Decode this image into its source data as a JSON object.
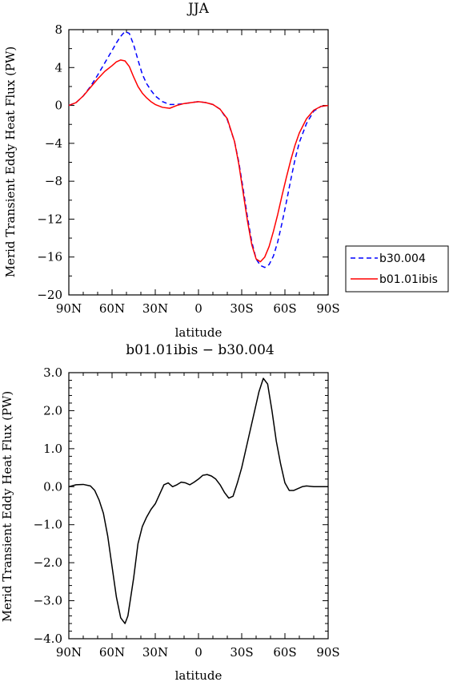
{
  "chart_data": [
    {
      "type": "line",
      "title": "JJA",
      "xlabel": "latitude",
      "ylabel": "Merid Transient Eddy Heat Flux (PW)",
      "xlim": [
        -90,
        90
      ],
      "ylim": [
        -20,
        8
      ],
      "x_ticks": [
        -90,
        -60,
        -30,
        0,
        30,
        60,
        90
      ],
      "x_tick_labels": [
        "90N",
        "60N",
        "30N",
        "0",
        "30S",
        "60S",
        "90S"
      ],
      "y_ticks": [
        -20,
        -16,
        -12,
        -8,
        -4,
        0,
        4,
        8
      ],
      "y_tick_labels": [
        "−20",
        "−16",
        "−12",
        "−8",
        "−4",
        "0",
        "4",
        "8"
      ],
      "grid": false,
      "legend_placement": "outside-right",
      "series": [
        {
          "name": "b30.004",
          "color": "#0000ff",
          "dash": "dashed",
          "x": [
            -90,
            -85,
            -80,
            -75,
            -70,
            -65,
            -60,
            -57,
            -54,
            -51,
            -48,
            -45,
            -42,
            -39,
            -36,
            -33,
            -30,
            -25,
            -20,
            -15,
            -10,
            -5,
            0,
            5,
            10,
            15,
            20,
            25,
            28,
            31,
            34,
            37,
            40,
            43,
            46,
            49,
            52,
            55,
            58,
            61,
            64,
            67,
            70,
            75,
            80,
            85,
            90
          ],
          "y": [
            0,
            0.3,
            1.0,
            2.0,
            3.2,
            4.5,
            5.8,
            6.6,
            7.3,
            7.8,
            7.6,
            6.4,
            4.8,
            3.3,
            2.3,
            1.6,
            1.0,
            0.4,
            0.1,
            0.1,
            0.2,
            0.3,
            0.4,
            0.3,
            0.1,
            -0.4,
            -1.5,
            -3.8,
            -6.0,
            -8.8,
            -11.8,
            -14.4,
            -16.2,
            -16.9,
            -17.1,
            -16.8,
            -15.9,
            -14.4,
            -12.4,
            -10.2,
            -7.9,
            -5.7,
            -3.9,
            -1.9,
            -0.6,
            -0.1,
            0
          ]
        },
        {
          "name": "b01.01ibis",
          "color": "#ff0000",
          "dash": "solid",
          "x": [
            -90,
            -85,
            -80,
            -75,
            -70,
            -65,
            -60,
            -57,
            -54,
            -51,
            -48,
            -45,
            -42,
            -39,
            -36,
            -33,
            -30,
            -25,
            -20,
            -15,
            -10,
            -5,
            0,
            5,
            10,
            15,
            20,
            25,
            28,
            31,
            34,
            37,
            40,
            43,
            46,
            49,
            52,
            55,
            58,
            61,
            64,
            67,
            70,
            75,
            80,
            85,
            90
          ],
          "y": [
            0,
            0.3,
            1.0,
            1.9,
            2.8,
            3.6,
            4.2,
            4.6,
            4.8,
            4.7,
            4.1,
            3.0,
            2.0,
            1.3,
            0.8,
            0.4,
            0.1,
            -0.2,
            -0.3,
            0.0,
            0.2,
            0.3,
            0.4,
            0.3,
            0.1,
            -0.4,
            -1.4,
            -3.8,
            -6.2,
            -9.2,
            -12.2,
            -14.7,
            -16.2,
            -16.5,
            -16.0,
            -14.9,
            -13.3,
            -11.5,
            -9.5,
            -7.6,
            -5.8,
            -4.2,
            -2.9,
            -1.4,
            -0.5,
            -0.1,
            0
          ]
        }
      ]
    },
    {
      "type": "line",
      "title": "b01.01ibis − b30.004",
      "xlabel": "latitude",
      "ylabel": "Merid Transient Eddy Heat Flux (PW)",
      "xlim": [
        -90,
        90
      ],
      "ylim": [
        -4,
        3
      ],
      "x_ticks": [
        -90,
        -60,
        -30,
        0,
        30,
        60,
        90
      ],
      "x_tick_labels": [
        "90N",
        "60N",
        "30N",
        "0",
        "30S",
        "60S",
        "90S"
      ],
      "y_ticks": [
        -4,
        -3,
        -2,
        -1,
        0,
        1,
        2,
        3
      ],
      "y_tick_labels": [
        "−4.0",
        "−3.0",
        "−2.0",
        "−1.0",
        "0.0",
        "1.0",
        "2.0",
        "3.0"
      ],
      "grid": false,
      "series": [
        {
          "color": "#000000",
          "dash": "solid",
          "x": [
            -90,
            -85,
            -80,
            -75,
            -72,
            -69,
            -66,
            -63,
            -60,
            -57,
            -54,
            -51,
            -49,
            -47,
            -45,
            -42,
            -39,
            -36,
            -33,
            -30,
            -27,
            -24,
            -21,
            -18,
            -15,
            -12,
            -9,
            -6,
            -3,
            0,
            3,
            6,
            9,
            12,
            15,
            18,
            21,
            24,
            27,
            30,
            33,
            36,
            39,
            42,
            45,
            48,
            51,
            54,
            57,
            60,
            63,
            66,
            69,
            72,
            75,
            80,
            85,
            90
          ],
          "y": [
            0,
            0.05,
            0.06,
            0.02,
            -0.1,
            -0.35,
            -0.7,
            -1.3,
            -2.1,
            -2.9,
            -3.45,
            -3.6,
            -3.4,
            -2.9,
            -2.4,
            -1.5,
            -1.05,
            -0.8,
            -0.6,
            -0.45,
            -0.2,
            0.05,
            0.1,
            0.0,
            0.05,
            0.12,
            0.1,
            0.05,
            0.12,
            0.2,
            0.3,
            0.32,
            0.28,
            0.2,
            0.05,
            -0.15,
            -0.3,
            -0.25,
            0.1,
            0.5,
            1.0,
            1.5,
            2.0,
            2.5,
            2.85,
            2.7,
            2.0,
            1.2,
            0.6,
            0.1,
            -0.1,
            -0.1,
            -0.05,
            0,
            0.02,
            0,
            0,
            0
          ]
        }
      ]
    }
  ]
}
